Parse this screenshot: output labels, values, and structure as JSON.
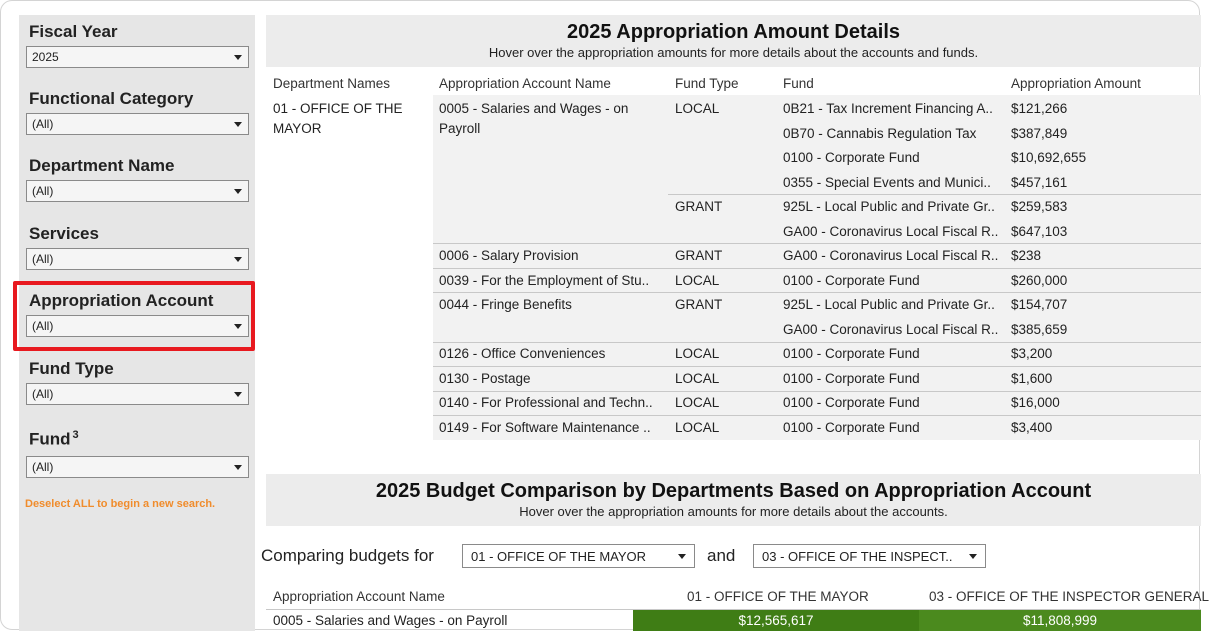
{
  "sidebar": {
    "filters": [
      {
        "label": "Fiscal Year",
        "value": "2025",
        "sup": ""
      },
      {
        "label": "Functional Category",
        "value": "(All)",
        "sup": ""
      },
      {
        "label": "Department Name",
        "value": "(All)",
        "sup": ""
      },
      {
        "label": "Services",
        "value": "(All)",
        "sup": ""
      },
      {
        "label": "Appropriation Account",
        "value": "(All)",
        "sup": ""
      },
      {
        "label": "Fund Type",
        "value": "(All)",
        "sup": ""
      },
      {
        "label": "Fund",
        "value": "(All)",
        "sup": "3"
      }
    ],
    "deselect_note": "Deselect ALL to begin a new search.",
    "highlight_color": "#e8191f"
  },
  "details": {
    "title": "2025 Appropriation Amount Details",
    "subtitle": "Hover over the appropriation amounts for more details about the accounts and funds.",
    "columns": [
      "Department Names",
      "Appropriation Account Name",
      "Fund Type",
      "Fund",
      "Appropriation Amount"
    ],
    "department": "01 - OFFICE OF THE MAYOR",
    "department_line1": "01 - OFFICE OF THE",
    "department_line2": "MAYOR",
    "rows": [
      {
        "account": "0005 - Salaries and Wages - on",
        "account2": "Payroll",
        "fund_type": "LOCAL",
        "fund": "0B21 - Tax Increment Financing A..",
        "amount": "$121,266"
      },
      {
        "account": "",
        "account2": "",
        "fund_type": "",
        "fund": "0B70 - Cannabis Regulation Tax",
        "amount": "$387,849"
      },
      {
        "account": "",
        "account2": "",
        "fund_type": "",
        "fund": "0100 - Corporate Fund",
        "amount": "$10,692,655"
      },
      {
        "account": "",
        "account2": "",
        "fund_type": "",
        "fund": "0355 - Special Events and Munici..",
        "amount": "$457,161"
      },
      {
        "account": "",
        "account2": "",
        "fund_type": "GRANT",
        "fund": "925L - Local Public and Private Gr..",
        "amount": "$259,583"
      },
      {
        "account": "",
        "account2": "",
        "fund_type": "",
        "fund": "GA00 - Coronavirus Local Fiscal R..",
        "amount": "$647,103"
      },
      {
        "account": "0006 - Salary Provision",
        "account2": "",
        "fund_type": "GRANT",
        "fund": "GA00 - Coronavirus Local Fiscal R..",
        "amount": "$238"
      },
      {
        "account": "0039 - For the Employment of Stu..",
        "account2": "",
        "fund_type": "LOCAL",
        "fund": "0100 - Corporate Fund",
        "amount": "$260,000"
      },
      {
        "account": "0044 - Fringe Benefits",
        "account2": "",
        "fund_type": "GRANT",
        "fund": "925L - Local Public and Private Gr..",
        "amount": "$154,707"
      },
      {
        "account": "",
        "account2": "",
        "fund_type": "",
        "fund": "GA00 - Coronavirus Local Fiscal R..",
        "amount": "$385,659"
      },
      {
        "account": "0126 - Office Conveniences",
        "account2": "",
        "fund_type": "LOCAL",
        "fund": "0100 - Corporate Fund",
        "amount": "$3,200"
      },
      {
        "account": "0130 - Postage",
        "account2": "",
        "fund_type": "LOCAL",
        "fund": "0100 - Corporate Fund",
        "amount": "$1,600"
      },
      {
        "account": "0140 - For Professional and Techn..",
        "account2": "",
        "fund_type": "LOCAL",
        "fund": "0100 - Corporate Fund",
        "amount": "$16,000"
      },
      {
        "account": "0149 - For Software Maintenance ..",
        "account2": "",
        "fund_type": "LOCAL",
        "fund": "0100 - Corporate Fund",
        "amount": "$3,400"
      }
    ]
  },
  "comparison": {
    "title": "2025 Budget Comparison by Departments Based on Appropriation Account",
    "subtitle": "Hover over the appropriation amounts for more details about the accounts.",
    "comparing_label": "Comparing budgets for",
    "and_label": "and",
    "dept_a": "01 - OFFICE OF THE MAYOR",
    "dept_b": "03 - OFFICE OF THE INSPECT..",
    "columns": [
      "Appropriation Account Name",
      "01 - OFFICE OF THE MAYOR",
      "03 - OFFICE OF THE INSPECTOR GENERAL"
    ],
    "rows": [
      {
        "account": "0005 - Salaries and Wages - on Payroll",
        "a": "$12,565,617",
        "b": "$11,808,999",
        "a_value": 12565617,
        "b_value": 11808999
      }
    ],
    "bar_color_a": "#3f7d15",
    "bar_color_b": "#4b8a1e"
  }
}
